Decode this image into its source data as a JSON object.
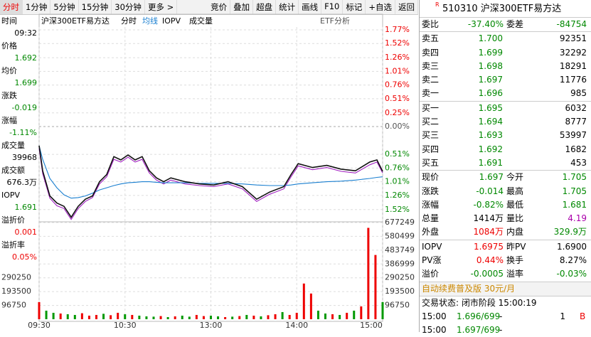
{
  "toolbar": {
    "tabs": [
      "分时",
      "1分钟",
      "5分钟",
      "15分钟",
      "30分钟",
      "更多 >"
    ],
    "buttons": [
      "竞价",
      "叠加",
      "超盘",
      "统计",
      "画线",
      "F10",
      "标记",
      "+自选",
      "返回"
    ]
  },
  "info_panel": [
    {
      "label": "时间",
      "value": "09:32",
      "color": "#000"
    },
    {
      "label": "价格",
      "value": "1.692",
      "color": "#080"
    },
    {
      "label": "均价",
      "value": "1.699",
      "color": "#080"
    },
    {
      "label": "涨跌",
      "value": "-0.019",
      "color": "#080"
    },
    {
      "label": "涨幅",
      "value": "-1.11%",
      "color": "#080"
    },
    {
      "label": "成交量",
      "value": "39968",
      "color": "#000"
    },
    {
      "label": "成交额",
      "value": "676.3万",
      "color": "#000"
    },
    {
      "label": "IOPV",
      "value": "1.691",
      "color": "#080"
    },
    {
      "label": "溢折价",
      "value": "0.001",
      "color": "#e00"
    },
    {
      "label": "溢折率",
      "value": "0.05%",
      "color": "#e00"
    }
  ],
  "chart_data": [
    {
      "type": "line",
      "title": "沪深300ETF易方达",
      "header_items": [
        "分时",
        "均线",
        "IOPV",
        "成交量"
      ],
      "button": "ETF分析",
      "x": [
        0,
        2.5,
        7.5,
        12.4,
        17.4,
        22.4,
        27.3,
        32.3,
        37.3,
        42.2,
        47.2,
        52.2,
        57.1,
        62.1,
        67.1,
        72,
        77,
        82,
        87,
        92,
        102,
        112,
        122,
        132,
        142,
        152,
        161,
        171,
        176,
        181,
        191,
        201,
        211,
        221,
        231,
        236,
        240
      ],
      "series": [
        {
          "name": "分时",
          "color": "#111",
          "values": [
            -0.35,
            -0.81,
            -1.27,
            -1.4,
            -1.46,
            -1.66,
            -1.46,
            -1.33,
            -1.27,
            -1.01,
            -0.88,
            -0.55,
            -0.61,
            -0.52,
            -0.61,
            -0.55,
            -0.81,
            -0.94,
            -1.01,
            -0.94,
            -1.01,
            -1.05,
            -1.07,
            -1.01,
            -1.1,
            -1.33,
            -1.2,
            -1.1,
            -0.88,
            -0.68,
            -0.75,
            -0.71,
            -0.78,
            -0.81,
            -0.65,
            -0.61,
            -0.82
          ]
        },
        {
          "name": "均线",
          "color": "#1a7fd0",
          "values": [
            -0.35,
            -0.6,
            -0.95,
            -1.12,
            -1.25,
            -1.31,
            -1.3,
            -1.27,
            -1.22,
            -1.16,
            -1.12,
            -1.08,
            -1.05,
            -1.03,
            -1.02,
            -1.01,
            -1.01,
            -1.02,
            -1.03,
            -1.03,
            -1.03,
            -1.04,
            -1.04,
            -1.04,
            -1.05,
            -1.07,
            -1.08,
            -1.08,
            -1.07,
            -1.05,
            -1.03,
            -1.01,
            -1,
            -0.98,
            -0.95,
            -0.93,
            -0.92
          ]
        },
        {
          "name": "IOPV",
          "color": "#a020c0",
          "values": [
            -0.4,
            -0.86,
            -1.31,
            -1.45,
            -1.5,
            -1.7,
            -1.5,
            -1.37,
            -1.3,
            -1.05,
            -0.92,
            -0.6,
            -0.65,
            -0.56,
            -0.65,
            -0.6,
            -0.85,
            -0.98,
            -1.05,
            -0.98,
            -1.05,
            -1.08,
            -1.1,
            -1.05,
            -1.14,
            -1.37,
            -1.24,
            -1.14,
            -0.92,
            -0.72,
            -0.79,
            -0.75,
            -0.82,
            -0.85,
            -0.7,
            -0.65,
            -0.85
          ]
        }
      ],
      "xlim": [
        0,
        240
      ],
      "xticks": [
        {
          "value": 0,
          "label": "09:30"
        },
        {
          "value": 60,
          "label": "10:30"
        },
        {
          "value": 120,
          "label": "13:00"
        },
        {
          "value": 180,
          "label": "14:00"
        },
        {
          "value": 240,
          "label": "15:00"
        }
      ],
      "ylim": [
        -1.77,
        1.77
      ],
      "yticks": [
        {
          "value": 1.77,
          "label": "1.77%"
        },
        {
          "value": 1.52,
          "label": "1.52%"
        },
        {
          "value": 1.26,
          "label": "1.26%"
        },
        {
          "value": 1.01,
          "label": "1.01%"
        },
        {
          "value": 0.76,
          "label": "0.76%"
        },
        {
          "value": 0.51,
          "label": "0.51%"
        },
        {
          "value": 0.25,
          "label": "0.25%"
        },
        {
          "value": 0,
          "label": "0.00%"
        },
        {
          "value": -0.51,
          "label": "0.51%"
        },
        {
          "value": -0.76,
          "label": "0.76%"
        },
        {
          "value": -1.01,
          "label": "1.01%"
        },
        {
          "value": -1.26,
          "label": "1.26%"
        },
        {
          "value": -1.52,
          "label": "1.52%"
        }
      ],
      "grid": true
    },
    {
      "type": "bar",
      "x": [
        0,
        5,
        10,
        15,
        20,
        25,
        30,
        35,
        40,
        45,
        50,
        55,
        60,
        65,
        70,
        75,
        80,
        85,
        90,
        95,
        100,
        105,
        110,
        115,
        120,
        125,
        130,
        135,
        140,
        145,
        150,
        155,
        160,
        165,
        170,
        175,
        180,
        185,
        190,
        195,
        200,
        205,
        210,
        215,
        220,
        225,
        230,
        235,
        240
      ],
      "values": [
        120000,
        60000,
        45000,
        40000,
        35000,
        30000,
        42000,
        25000,
        30000,
        38000,
        28000,
        45000,
        35000,
        30000,
        25000,
        20000,
        18000,
        22000,
        15000,
        20000,
        25000,
        18000,
        30000,
        22000,
        25000,
        20000,
        15000,
        18000,
        22000,
        30000,
        25000,
        20000,
        28000,
        35000,
        50000,
        30000,
        45000,
        250000,
        180000,
        60000,
        40000,
        35000,
        30000,
        45000,
        60000,
        90000,
        640000,
        450000,
        120000
      ],
      "colors": [
        "#e00",
        "#090",
        "#090",
        "#e00",
        "#090",
        "#090",
        "#e00",
        "#e00",
        "#e00",
        "#090",
        "#e00",
        "#e00",
        "#090",
        "#e00",
        "#090",
        "#090",
        "#090",
        "#e00",
        "#090",
        "#e00",
        "#090",
        "#090",
        "#e00",
        "#e00",
        "#090",
        "#090",
        "#e00",
        "#090",
        "#e00",
        "#090",
        "#e00",
        "#090",
        "#e00",
        "#e00",
        "#090",
        "#e00",
        "#e00",
        "#e00",
        "#e00",
        "#090",
        "#090",
        "#e00",
        "#090",
        "#e00",
        "#090",
        "#e00",
        "#e00",
        "#e00",
        "#090"
      ],
      "xlim": [
        0,
        240
      ],
      "ylim": [
        0,
        677249
      ],
      "yticks": [
        96750,
        193500,
        290250,
        386999,
        483749,
        580499,
        677249
      ],
      "left_ticks": [
        2,
        1,
        0
      ]
    }
  ],
  "quote": {
    "flag": "R",
    "title": "510310 沪深300ETF易方达",
    "rows": [
      [
        {
          "t": "委比",
          "c": "#000"
        },
        {
          "t": "-37.40%",
          "c": "#080"
        },
        {
          "t": "委差",
          "c": "#000"
        },
        {
          "t": "-84754",
          "c": "#080"
        }
      ],
      [
        {
          "t": "卖五",
          "c": "#000"
        },
        {
          "t": "1.700",
          "c": "#080"
        },
        {
          "t": "92351",
          "c": "#000"
        }
      ],
      [
        {
          "t": "卖四",
          "c": "#000"
        },
        {
          "t": "1.699",
          "c": "#080"
        },
        {
          "t": "32292",
          "c": "#000"
        }
      ],
      [
        {
          "t": "卖三",
          "c": "#000"
        },
        {
          "t": "1.698",
          "c": "#080"
        },
        {
          "t": "18291",
          "c": "#000"
        }
      ],
      [
        {
          "t": "卖二",
          "c": "#000"
        },
        {
          "t": "1.697",
          "c": "#080"
        },
        {
          "t": "11776",
          "c": "#000"
        }
      ],
      [
        {
          "t": "卖一",
          "c": "#000"
        },
        {
          "t": "1.696",
          "c": "#080"
        },
        {
          "t": "985",
          "c": "#000"
        }
      ],
      [
        {
          "t": "买一",
          "c": "#000"
        },
        {
          "t": "1.695",
          "c": "#080"
        },
        {
          "t": "6032",
          "c": "#000"
        }
      ],
      [
        {
          "t": "买二",
          "c": "#000"
        },
        {
          "t": "1.694",
          "c": "#080"
        },
        {
          "t": "8777",
          "c": "#000"
        }
      ],
      [
        {
          "t": "买三",
          "c": "#000"
        },
        {
          "t": "1.693",
          "c": "#080"
        },
        {
          "t": "53997",
          "c": "#000"
        }
      ],
      [
        {
          "t": "买四",
          "c": "#000"
        },
        {
          "t": "1.692",
          "c": "#080"
        },
        {
          "t": "1682",
          "c": "#000"
        }
      ],
      [
        {
          "t": "买五",
          "c": "#000"
        },
        {
          "t": "1.691",
          "c": "#080"
        },
        {
          "t": "453",
          "c": "#000"
        }
      ],
      [
        {
          "t": "现价",
          "c": "#000"
        },
        {
          "t": "1.697",
          "c": "#080"
        },
        {
          "t": "今开",
          "c": "#000"
        },
        {
          "t": "1.705",
          "c": "#080"
        }
      ],
      [
        {
          "t": "涨跌",
          "c": "#000"
        },
        {
          "t": "-0.014",
          "c": "#080"
        },
        {
          "t": "最高",
          "c": "#000"
        },
        {
          "t": "1.705",
          "c": "#080"
        }
      ],
      [
        {
          "t": "涨幅",
          "c": "#000"
        },
        {
          "t": "-0.82%",
          "c": "#080"
        },
        {
          "t": "最低",
          "c": "#000"
        },
        {
          "t": "1.681",
          "c": "#080"
        }
      ],
      [
        {
          "t": "总量",
          "c": "#000"
        },
        {
          "t": "1414万",
          "c": "#000"
        },
        {
          "t": "量比",
          "c": "#000"
        },
        {
          "t": "4.19",
          "c": "#a0a"
        }
      ],
      [
        {
          "t": "外盘",
          "c": "#000"
        },
        {
          "t": "1084万",
          "c": "#e00"
        },
        {
          "t": "内盘",
          "c": "#000"
        },
        {
          "t": "329.9万",
          "c": "#080"
        }
      ],
      [
        {
          "t": "IOPV",
          "c": "#000"
        },
        {
          "t": "1.6975",
          "c": "#e00"
        },
        {
          "t": "昨PV",
          "c": "#000"
        },
        {
          "t": "1.6900",
          "c": "#000"
        }
      ],
      [
        {
          "t": "PV涨",
          "c": "#000"
        },
        {
          "t": "0.44%",
          "c": "#e00"
        },
        {
          "t": "换手",
          "c": "#000"
        },
        {
          "t": "8.27%",
          "c": "#000"
        }
      ],
      [
        {
          "t": "溢价",
          "c": "#000"
        },
        {
          "t": "-0.0005",
          "c": "#080"
        },
        {
          "t": "溢率",
          "c": "#000"
        },
        {
          "t": "-0.03%",
          "c": "#080"
        }
      ]
    ],
    "promo": "自动续费普及版  30元/月",
    "status": "交易状态: 闭市阶段 15:00:19",
    "ticks": [
      [
        "15:00",
        "1.696/699",
        "-",
        "1",
        "B"
      ],
      [
        "15:00",
        "1.697/699",
        "-",
        "",
        ""
      ]
    ]
  }
}
